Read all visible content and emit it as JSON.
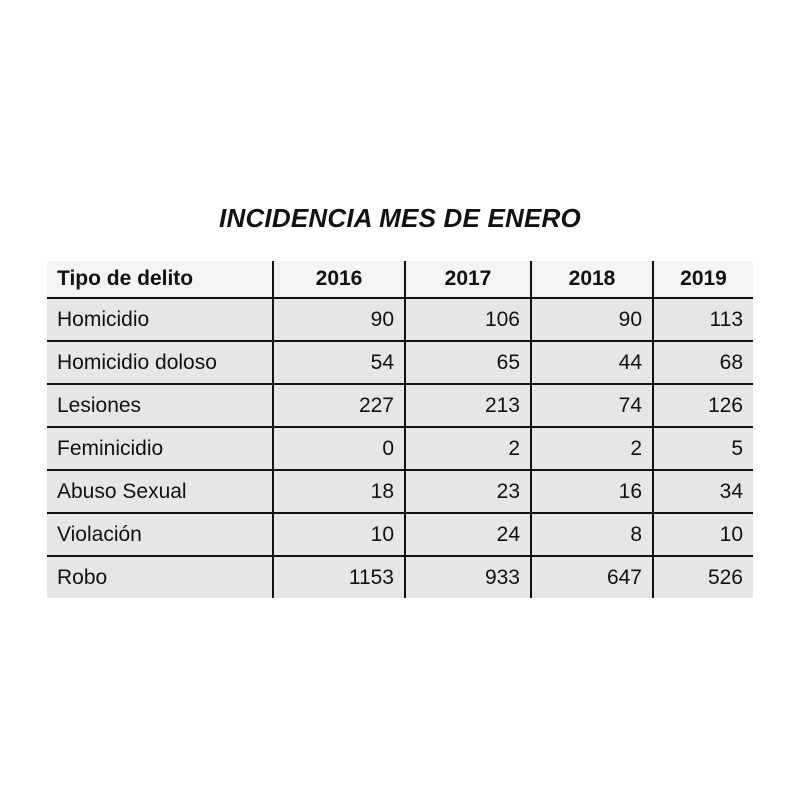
{
  "chart_data": {
    "type": "table",
    "title": "INCIDENCIA MES DE ENERO",
    "columns": [
      "Tipo de delito",
      "2016",
      "2017",
      "2018",
      "2019"
    ],
    "rows": [
      {
        "label": "Homicidio",
        "values": [
          "90",
          "106",
          "90",
          "113"
        ]
      },
      {
        "label": "Homicidio doloso",
        "values": [
          "54",
          "65",
          "44",
          "68"
        ]
      },
      {
        "label": "Lesiones",
        "values": [
          "227",
          "213",
          "74",
          "126"
        ]
      },
      {
        "label": "Feminicidio",
        "values": [
          "0",
          "2",
          "2",
          "5"
        ]
      },
      {
        "label": "Abuso Sexual",
        "values": [
          "18",
          "23",
          "16",
          "34"
        ]
      },
      {
        "label": "Violación",
        "values": [
          "10",
          "24",
          "8",
          "10"
        ]
      },
      {
        "label": "Robo",
        "values": [
          "1153",
          "933",
          "647",
          "526"
        ]
      }
    ]
  }
}
